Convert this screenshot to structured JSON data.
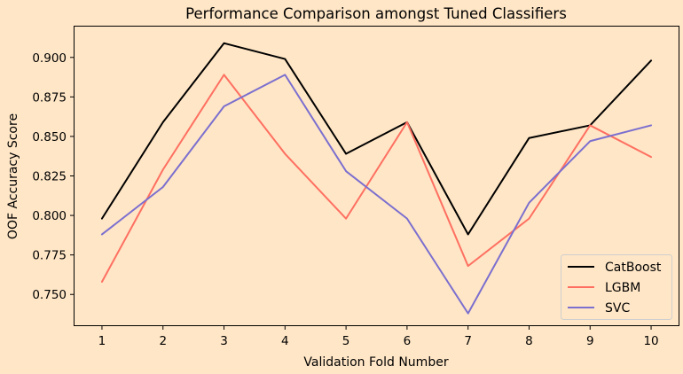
{
  "chart_data": {
    "type": "line",
    "title": "Performance Comparison amongst Tuned Classifiers",
    "xlabel": "Validation Fold Number",
    "ylabel": "OOF Accuracy Score",
    "x": [
      1,
      2,
      3,
      4,
      5,
      6,
      7,
      8,
      9,
      10
    ],
    "xticks": [
      "1",
      "2",
      "3",
      "4",
      "5",
      "6",
      "7",
      "8",
      "9",
      "10"
    ],
    "xlim": [
      0.55,
      10.45
    ],
    "ylim": [
      0.7305,
      0.9195
    ],
    "yticks": [
      "0.750",
      "0.775",
      "0.800",
      "0.825",
      "0.850",
      "0.875",
      "0.900"
    ],
    "grid": false,
    "legend_position": "lower-right",
    "background_color": "#ffe6c6",
    "series": [
      {
        "name": "CatBoost",
        "color": "#000000",
        "values": [
          0.798,
          0.859,
          0.909,
          0.899,
          0.839,
          0.859,
          0.788,
          0.849,
          0.857,
          0.898
        ]
      },
      {
        "name": "LGBM",
        "color": "#ff6f61",
        "values": [
          0.758,
          0.829,
          0.889,
          0.839,
          0.798,
          0.859,
          0.768,
          0.798,
          0.857,
          0.837
        ]
      },
      {
        "name": "SVC",
        "color": "#7b6fcf",
        "values": [
          0.788,
          0.818,
          0.869,
          0.889,
          0.828,
          0.798,
          0.738,
          0.808,
          0.847,
          0.857
        ]
      }
    ]
  }
}
